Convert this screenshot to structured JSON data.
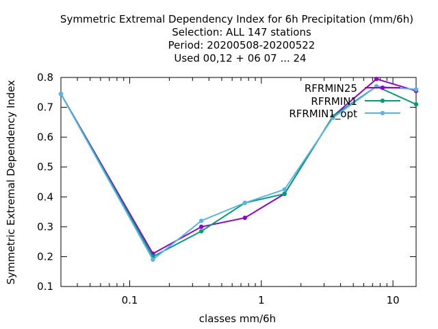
{
  "chart_data": {
    "type": "line",
    "title_lines": [
      "Symmetric Extremal Dependency Index  for 6h Precipitation (mm/6h)",
      "Selection: ALL    147 stations",
      "Period: 20200508-20200522",
      "Used  00,12  + 06 07 ... 24"
    ],
    "xlabel": "classes mm/6h",
    "ylabel": "Symmetric Extremal Dependency Index",
    "x_scale": "log",
    "xlim": [
      0.03,
      15
    ],
    "ylim": [
      0.1,
      0.8
    ],
    "x_ticks": [
      {
        "value": 0.1,
        "label": "0.1"
      },
      {
        "value": 1,
        "label": "1"
      },
      {
        "value": 10,
        "label": "10"
      }
    ],
    "y_ticks": [
      {
        "value": 0.1,
        "label": "0.1"
      },
      {
        "value": 0.2,
        "label": "0.2"
      },
      {
        "value": 0.3,
        "label": "0.3"
      },
      {
        "value": 0.4,
        "label": "0.4"
      },
      {
        "value": 0.5,
        "label": "0.5"
      },
      {
        "value": 0.6,
        "label": "0.6"
      },
      {
        "value": 0.7,
        "label": "0.7"
      },
      {
        "value": 0.8,
        "label": "0.8"
      }
    ],
    "grid": false,
    "legend_position": "top-right",
    "series": [
      {
        "name": "RFRMIN25",
        "color": "#9400d3",
        "x": [
          0.03,
          0.15,
          0.35,
          0.75,
          1.5,
          3.5,
          7.5,
          15
        ],
        "values": [
          0.745,
          0.21,
          0.3,
          0.33,
          0.41,
          0.67,
          0.795,
          0.755
        ]
      },
      {
        "name": "RFRMIN1",
        "color": "#009e73",
        "x": [
          0.03,
          0.15,
          0.35,
          0.75,
          1.5,
          3.5,
          7.5,
          15
        ],
        "values": [
          0.745,
          0.2,
          0.285,
          0.38,
          0.41,
          0.67,
          0.77,
          0.71
        ]
      },
      {
        "name": "RFRMIN1_opt",
        "color": "#56b4e9",
        "x": [
          0.03,
          0.15,
          0.35,
          0.75,
          1.5,
          3.5,
          7.5,
          15
        ],
        "values": [
          0.745,
          0.19,
          0.32,
          0.38,
          0.425,
          0.665,
          0.77,
          0.76
        ]
      }
    ]
  }
}
